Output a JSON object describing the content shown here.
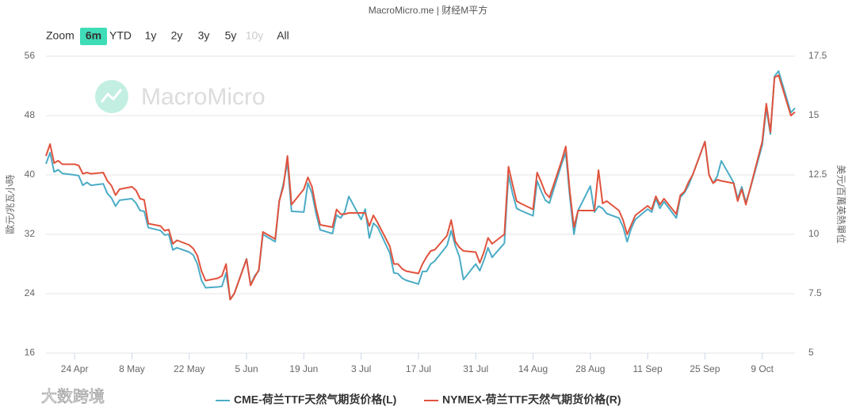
{
  "chart_data": {
    "type": "line",
    "title": "MacroMicro.me | 财经M平方",
    "zoom_label": "Zoom",
    "range_buttons": [
      "6m",
      "YTD",
      "1y",
      "2y",
      "3y",
      "5y",
      "10y",
      "All"
    ],
    "selected_range_button": 0,
    "disabled_range_buttons": [
      6
    ],
    "watermark": "MacroMicro",
    "corner_watermark": "大数跨境",
    "ylabel": "歐元/兆瓦小時",
    "y2label": "美元/百萬英熱單位",
    "grid": true,
    "legend": "bottom",
    "xlim": [
      "04-17",
      "10-17"
    ],
    "xticks": [
      {
        "value": "04-24",
        "label": "24 Apr"
      },
      {
        "value": "05-08",
        "label": "8 May"
      },
      {
        "value": "05-22",
        "label": "22 May"
      },
      {
        "value": "06-05",
        "label": "5 Jun"
      },
      {
        "value": "06-19",
        "label": "19 Jun"
      },
      {
        "value": "07-03",
        "label": "3 Jul"
      },
      {
        "value": "07-17",
        "label": "17 Jul"
      },
      {
        "value": "07-31",
        "label": "31 Jul"
      },
      {
        "value": "08-14",
        "label": "14 Aug"
      },
      {
        "value": "08-28",
        "label": "28 Aug"
      },
      {
        "value": "09-11",
        "label": "11 Sep"
      },
      {
        "value": "09-25",
        "label": "25 Sep"
      },
      {
        "value": "10-09",
        "label": "9 Oct"
      }
    ],
    "ylim": [
      16,
      56
    ],
    "yticks": [
      16,
      24,
      32,
      40,
      48,
      56
    ],
    "y2lim": [
      5,
      17.5
    ],
    "y2ticks": [
      5,
      7.5,
      10,
      12.5,
      15,
      17.5
    ],
    "x": [
      "04-17",
      "04-18",
      "04-19",
      "04-20",
      "04-21",
      "04-24",
      "04-25",
      "04-26",
      "04-27",
      "04-28",
      "05-01",
      "05-02",
      "05-03",
      "05-04",
      "05-05",
      "05-08",
      "05-09",
      "05-10",
      "05-11",
      "05-12",
      "05-15",
      "05-16",
      "05-17",
      "05-18",
      "05-19",
      "05-22",
      "05-23",
      "05-24",
      "05-25",
      "05-26",
      "05-29",
      "05-30",
      "05-31",
      "06-01",
      "06-02",
      "06-05",
      "06-06",
      "06-07",
      "06-08",
      "06-09",
      "06-12",
      "06-13",
      "06-14",
      "06-15",
      "06-16",
      "06-19",
      "06-20",
      "06-21",
      "06-22",
      "06-23",
      "06-26",
      "06-27",
      "06-28",
      "06-29",
      "06-30",
      "07-03",
      "07-04",
      "07-05",
      "07-06",
      "07-07",
      "07-10",
      "07-11",
      "07-12",
      "07-13",
      "07-14",
      "07-17",
      "07-18",
      "07-19",
      "07-20",
      "07-21",
      "07-24",
      "07-25",
      "07-26",
      "07-27",
      "07-28",
      "07-31",
      "08-01",
      "08-02",
      "08-03",
      "08-04",
      "08-07",
      "08-08",
      "08-09",
      "08-10",
      "08-11",
      "08-14",
      "08-15",
      "08-16",
      "08-17",
      "08-18",
      "08-21",
      "08-22",
      "08-23",
      "08-24",
      "08-25",
      "08-28",
      "08-29",
      "08-30",
      "08-31",
      "09-01",
      "09-04",
      "09-05",
      "09-06",
      "09-07",
      "09-08",
      "09-11",
      "09-12",
      "09-13",
      "09-14",
      "09-15",
      "09-18",
      "09-19",
      "09-20",
      "09-21",
      "09-22",
      "09-25",
      "09-26",
      "09-27",
      "09-28",
      "09-29",
      "10-02",
      "10-03",
      "10-04",
      "10-05",
      "10-06",
      "10-09",
      "10-10",
      "10-11",
      "10-12",
      "10-13",
      "10-16",
      "10-17"
    ],
    "series": [
      {
        "name": "CME-荷兰TTF天然气期货价格(L)",
        "color": "#4bacc6",
        "axis": "y",
        "values": [
          41.5,
          43.0,
          40.4,
          40.7,
          40.2,
          40.0,
          39.9,
          38.6,
          39.0,
          38.6,
          38.8,
          37.5,
          36.9,
          35.8,
          36.6,
          36.8,
          36.2,
          35.2,
          35.1,
          32.9,
          32.5,
          31.9,
          32.0,
          29.9,
          30.2,
          29.6,
          29.2,
          28.0,
          25.8,
          24.8,
          24.9,
          25.0,
          26.8,
          23.3,
          24.0,
          28.7,
          25.2,
          26.4,
          27.1,
          32.0,
          31.0,
          36.5,
          38.8,
          41.7,
          35.1,
          35.0,
          38.9,
          37.5,
          34.8,
          32.6,
          32.1,
          34.6,
          34.2,
          35.0,
          37.1,
          34.0,
          35.4,
          31.5,
          33.5,
          33.0,
          29.5,
          26.8,
          26.7,
          26.1,
          25.8,
          25.3,
          27.0,
          27.0,
          28.0,
          28.4,
          30.5,
          32.5,
          30.5,
          29.0,
          25.9,
          28.0,
          27.1,
          28.5,
          30.2,
          28.9,
          30.8,
          40.0,
          37.5,
          35.5,
          35.2,
          34.5,
          39.2,
          37.8,
          36.6,
          36.2,
          41.5,
          43.0,
          37.0,
          32.0,
          35.2,
          38.5,
          35.0,
          35.8,
          35.5,
          34.8,
          34.2,
          33.0,
          31.0,
          32.8,
          34.0,
          35.4,
          35.0,
          36.8,
          35.5,
          36.4,
          34.2,
          37.0,
          37.6,
          38.6,
          40.0,
          44.5,
          40.0,
          38.9,
          39.8,
          41.9,
          39.0,
          36.8,
          38.4,
          36.3,
          38.0,
          44.0,
          49.0,
          45.5,
          53.3,
          54.0,
          48.4,
          49.0
        ]
      },
      {
        "name": "NYMEX-荷兰TTF天然气期货价格(R)",
        "color": "#e0533d",
        "axis": "y2",
        "values": [
          13.3,
          13.8,
          13.0,
          13.1,
          12.95,
          12.95,
          12.9,
          12.55,
          12.6,
          12.55,
          12.6,
          12.25,
          12.05,
          11.65,
          11.9,
          12.0,
          11.85,
          11.5,
          11.45,
          10.45,
          10.35,
          10.15,
          10.2,
          9.6,
          9.75,
          9.55,
          9.4,
          9.1,
          8.45,
          8.05,
          8.15,
          8.25,
          8.75,
          7.25,
          7.5,
          8.95,
          7.85,
          8.2,
          8.5,
          10.1,
          9.8,
          11.4,
          12.0,
          13.3,
          11.25,
          11.9,
          12.4,
          12.0,
          11.1,
          10.4,
          10.3,
          11.05,
          10.85,
          10.85,
          10.9,
          10.9,
          10.9,
          10.35,
          10.8,
          10.5,
          9.5,
          8.75,
          8.75,
          8.55,
          8.45,
          8.35,
          8.75,
          9.05,
          9.3,
          9.35,
          9.95,
          10.6,
          9.7,
          9.45,
          9.3,
          9.25,
          8.8,
          9.25,
          9.85,
          9.6,
          10.0,
          12.85,
          12.1,
          11.4,
          11.3,
          11.05,
          12.6,
          12.2,
          11.75,
          11.55,
          13.1,
          13.7,
          11.8,
          10.3,
          11.0,
          11.0,
          11.0,
          12.7,
          11.3,
          11.4,
          11.0,
          10.6,
          10.0,
          10.4,
          10.8,
          11.2,
          11.05,
          11.6,
          11.25,
          11.5,
          10.85,
          11.65,
          11.8,
          12.2,
          12.5,
          13.9,
          12.5,
          12.15,
          12.3,
          12.25,
          12.15,
          11.4,
          11.9,
          11.25,
          11.9,
          13.9,
          15.5,
          14.3,
          16.6,
          16.7,
          15.0,
          15.15
        ]
      }
    ]
  }
}
